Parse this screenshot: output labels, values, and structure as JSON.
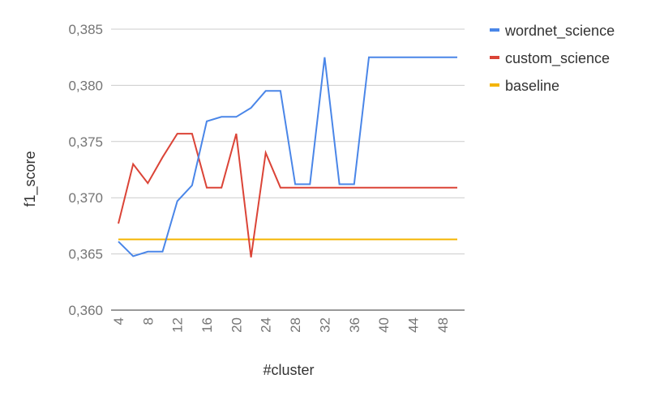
{
  "chart_data": {
    "type": "line",
    "xlabel": "#cluster",
    "ylabel": "f1_score",
    "ylim": [
      0.36,
      0.385
    ],
    "xlim": [
      4,
      50
    ],
    "yticks": [
      "0,360",
      "0,365",
      "0,370",
      "0,375",
      "0,380",
      "0,385"
    ],
    "xticks": [
      "4",
      "8",
      "12",
      "16",
      "20",
      "24",
      "28",
      "32",
      "36",
      "40",
      "44",
      "48"
    ],
    "grid": true,
    "legend_position": "right",
    "x": [
      4,
      6,
      8,
      10,
      12,
      14,
      16,
      18,
      20,
      22,
      24,
      26,
      28,
      30,
      32,
      34,
      36,
      38,
      40,
      42,
      44,
      46,
      48,
      50
    ],
    "series": [
      {
        "name": "wordnet_science",
        "color": "#4a86e8",
        "values": [
          0.3661,
          0.3648,
          0.3652,
          0.3652,
          0.3697,
          0.3711,
          0.3768,
          0.3772,
          0.3772,
          0.378,
          0.3795,
          0.3795,
          0.3712,
          0.3712,
          0.3825,
          0.3712,
          0.3712,
          0.3825,
          0.3825,
          0.3825,
          0.3825,
          0.3825,
          0.3825,
          0.3825
        ]
      },
      {
        "name": "custom_science",
        "color": "#db4437",
        "values": [
          0.3677,
          0.373,
          0.3713,
          0.3736,
          0.3757,
          0.3757,
          0.3709,
          0.3709,
          0.3757,
          0.3647,
          0.374,
          0.3709,
          0.3709,
          0.3709,
          0.3709,
          0.3709,
          0.3709,
          0.3709,
          0.3709,
          0.3709,
          0.3709,
          0.3709,
          0.3709,
          0.3709
        ]
      },
      {
        "name": "baseline",
        "color": "#f4b400",
        "values": [
          0.3663,
          0.3663,
          0.3663,
          0.3663,
          0.3663,
          0.3663,
          0.3663,
          0.3663,
          0.3663,
          0.3663,
          0.3663,
          0.3663,
          0.3663,
          0.3663,
          0.3663,
          0.3663,
          0.3663,
          0.3663,
          0.3663,
          0.3663,
          0.3663,
          0.3663,
          0.3663,
          0.3663
        ]
      }
    ]
  }
}
